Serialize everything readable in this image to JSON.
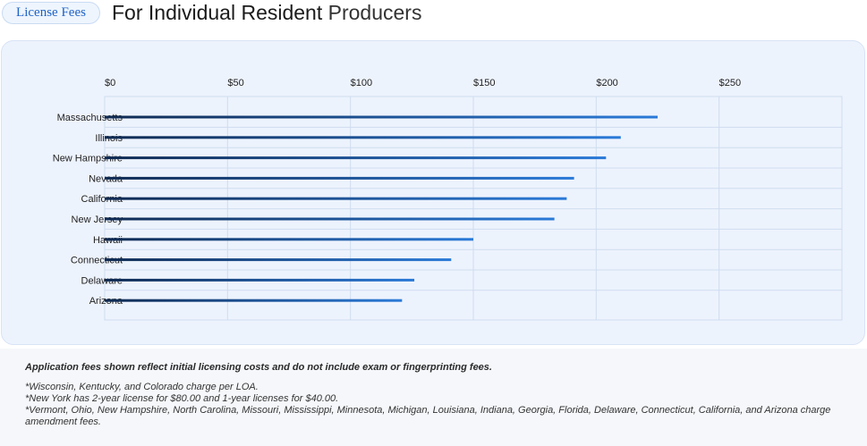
{
  "header": {
    "badge": "License Fees",
    "title_main": "For Individual Resident",
    "title_rest": "Producers"
  },
  "colors": {
    "bar_dark": "#0f2a52",
    "bar_light": "#2a7ad8",
    "grid": "#cfdcef",
    "card_bg": "#edf3fd"
  },
  "chart_data": {
    "type": "bar",
    "orientation": "horizontal",
    "categories": [
      "Massachusetts",
      "Illinois",
      "New Hampshire",
      "Nevada",
      "California",
      "New Jersey",
      "Hawaii",
      "Connecticut",
      "Delaware",
      "Arizona"
    ],
    "values": [
      225,
      210,
      204,
      191,
      188,
      183,
      150,
      141,
      126,
      121
    ],
    "x_ticks": [
      0,
      50,
      100,
      150,
      200,
      250
    ],
    "x_tick_labels": [
      "$0",
      "$50",
      "$100",
      "$150",
      "$200",
      "$250"
    ],
    "xlim": [
      0,
      300
    ],
    "grid": true
  },
  "footnotes": {
    "lead": "Application fees shown reflect initial licensing costs and do not include exam or fingerprinting fees.",
    "notes": [
      "*Wisconsin, Kentucky, and Colorado charge per LOA.",
      "*New York has 2-year license for $80.00 and 1-year licenses for $40.00.",
      "*Vermont, Ohio, New Hampshire, North Carolina, Missouri, Mississippi, Minnesota, Michigan, Louisiana, Indiana, Georgia, Florida, Delaware, Connecticut, California, and Arizona charge amendment fees."
    ]
  }
}
